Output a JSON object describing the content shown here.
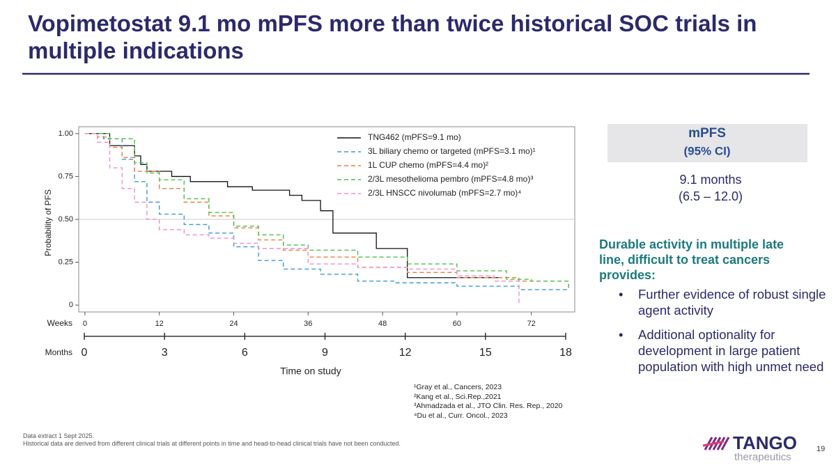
{
  "title": "Vopimetostat 9.1 mo mPFS more than twice historical SOC trials in multiple indications",
  "chart_data": {
    "type": "line",
    "step": true,
    "y_label": "Probability of PFS",
    "x_label": "Time on study",
    "weeks_label": "Weeks",
    "months_label": "Months",
    "xlim": [
      -1,
      79
    ],
    "xticks": [
      0,
      12,
      24,
      36,
      48,
      60,
      72
    ],
    "ylim": [
      -0.04,
      1.04
    ],
    "yticks": [
      {
        "value": 0,
        "label": "0"
      },
      {
        "value": 0.25,
        "label": "0.25"
      },
      {
        "value": 0.5,
        "label": "0.50"
      },
      {
        "value": 0.75,
        "label": "0.75"
      },
      {
        "value": 1,
        "label": "1.00"
      }
    ],
    "reference_line": 0.5,
    "months_lim": [
      0,
      18
    ],
    "months_ticks": [
      0,
      3,
      6,
      9,
      12,
      15,
      18
    ],
    "series": [
      {
        "name": "TNG462 (mPFS=9.1 mo)",
        "color": "#111111",
        "linestyle": "solid",
        "x": [
          0,
          4,
          8,
          9,
          10,
          14,
          17,
          23,
          27,
          33,
          35,
          38,
          40,
          47,
          52,
          67
        ],
        "values": [
          1,
          0.93,
          0.87,
          0.82,
          0.78,
          0.75,
          0.72,
          0.69,
          0.67,
          0.64,
          0.61,
          0.55,
          0.42,
          0.33,
          0.16,
          0.16
        ]
      },
      {
        "name": "3L biliary chemo or targeted (mPFS=3.1 mo)¹",
        "color": "#3a9bd5",
        "linestyle": "dashed",
        "x": [
          0,
          3,
          6,
          8,
          10,
          12,
          16,
          20,
          24,
          28,
          32,
          38,
          44,
          50,
          60,
          70,
          78
        ],
        "values": [
          1,
          0.97,
          0.85,
          0.72,
          0.6,
          0.53,
          0.47,
          0.42,
          0.34,
          0.26,
          0.21,
          0.18,
          0.14,
          0.13,
          0.11,
          0.09,
          0.09
        ]
      },
      {
        "name": "1L CUP chemo (mPFS=4.4 mo)²",
        "color": "#f07b3f",
        "linestyle": "dashed",
        "x": [
          0,
          2,
          4,
          6,
          8,
          12,
          16,
          20,
          24,
          28,
          32,
          36,
          44,
          52,
          60,
          70,
          78
        ],
        "values": [
          1,
          0.98,
          0.92,
          0.86,
          0.78,
          0.68,
          0.6,
          0.52,
          0.45,
          0.38,
          0.32,
          0.28,
          0.22,
          0.19,
          0.16,
          0.14,
          0.1
        ]
      },
      {
        "name": "2/3L mesothelioma pembro (mPFS=4.8 mo)³",
        "color": "#4cc24c",
        "linestyle": "dashed",
        "x": [
          0,
          4,
          8,
          10,
          12,
          16,
          20,
          24,
          28,
          32,
          36,
          44,
          52,
          60,
          68,
          72,
          78
        ],
        "values": [
          1,
          0.97,
          0.83,
          0.77,
          0.73,
          0.62,
          0.54,
          0.46,
          0.41,
          0.35,
          0.32,
          0.28,
          0.24,
          0.2,
          0.15,
          0.14,
          0.1
        ]
      },
      {
        "name": "2/3L HNSCC nivolumab (mPFS=2.7 mo)⁴",
        "color": "#ee8fd0",
        "linestyle": "dashed",
        "x": [
          0,
          2,
          4,
          6,
          8,
          10,
          12,
          16,
          20,
          24,
          28,
          36,
          44,
          52,
          60,
          66,
          70,
          70
        ],
        "values": [
          1,
          0.95,
          0.8,
          0.68,
          0.6,
          0.5,
          0.44,
          0.41,
          0.39,
          0.36,
          0.33,
          0.24,
          0.22,
          0.21,
          0.17,
          0.14,
          0.11,
          0.01
        ]
      }
    ]
  },
  "mpfs_box": {
    "header": "mPFS",
    "subheader": "(95% CI)",
    "value": "9.1 months",
    "ci": "(6.5 – 12.0)"
  },
  "summary": {
    "heading": "Durable activity in multiple late line, difficult to treat cancers provides:",
    "bullets": [
      "Further evidence of robust single agent activity",
      "Additional optionality for development in large patient population with high unmet need"
    ]
  },
  "references": [
    "¹Gray et al., Cancers, 2023",
    "²Kang et al., Sci.Rep.,2021",
    "³Ahmadzada et al., JTO Clin. Res. Rep., 2020",
    "⁴Du et al., Curr. Oncol., 2023"
  ],
  "footnotes": [
    "Data extract 1 Sept 2025.",
    "Historical data are derived from different clinical trials at different points in time and head-to-head clinical trials have not been conducted."
  ],
  "logo": {
    "name": "TANGO",
    "sub": "therapeutics"
  },
  "page_number": 19
}
